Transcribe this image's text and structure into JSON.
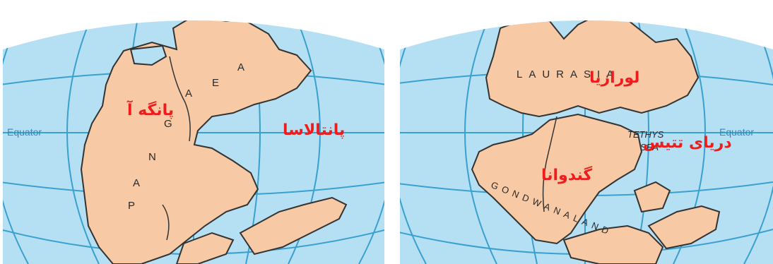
{
  "colors": {
    "ocean": "#b5dff2",
    "grid": "#3aa0d0",
    "land": "#f7c9a4",
    "coast": "#333333",
    "label_red": "#ee1c1c"
  },
  "left_map": {
    "equator": "Equator",
    "pangaea_letters": [
      "P",
      "A",
      "N",
      "G",
      "A",
      "E",
      "A"
    ],
    "label_pangaea": "پانگه آ",
    "label_panthalassa": "پانتالاسا"
  },
  "right_map": {
    "equator": "Equator",
    "laurasia_text": "LAURASIA",
    "gondwana_text": "GONDWANALAND",
    "tethys_text_1": "TETHYS",
    "tethys_text_2": "SEA",
    "label_laurasia": "لورازیا",
    "label_tethys": "دریای تتیس",
    "label_gondwana": "گندوانا"
  }
}
